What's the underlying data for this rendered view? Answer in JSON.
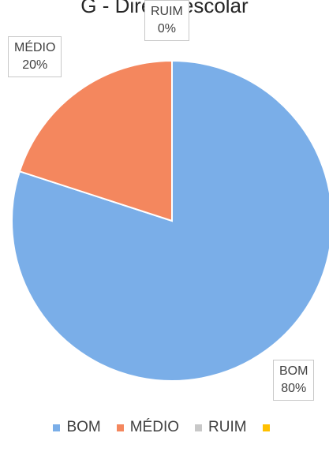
{
  "title": "G - Diretor escolar",
  "chart_data": {
    "type": "pie",
    "categories": [
      "BOM",
      "MÉDIO",
      "RUIM",
      ""
    ],
    "values": [
      80,
      20,
      0,
      0
    ],
    "labels": [
      {
        "category": "RUIM",
        "value": "0%"
      },
      {
        "category": "MÉDIO",
        "value": "20%"
      },
      {
        "category": "BOM",
        "value": "80%"
      }
    ],
    "colors": [
      "#7aaee8",
      "#f4875e",
      "#c8c8c8",
      "#ffc000"
    ],
    "legend_position": "bottom"
  }
}
